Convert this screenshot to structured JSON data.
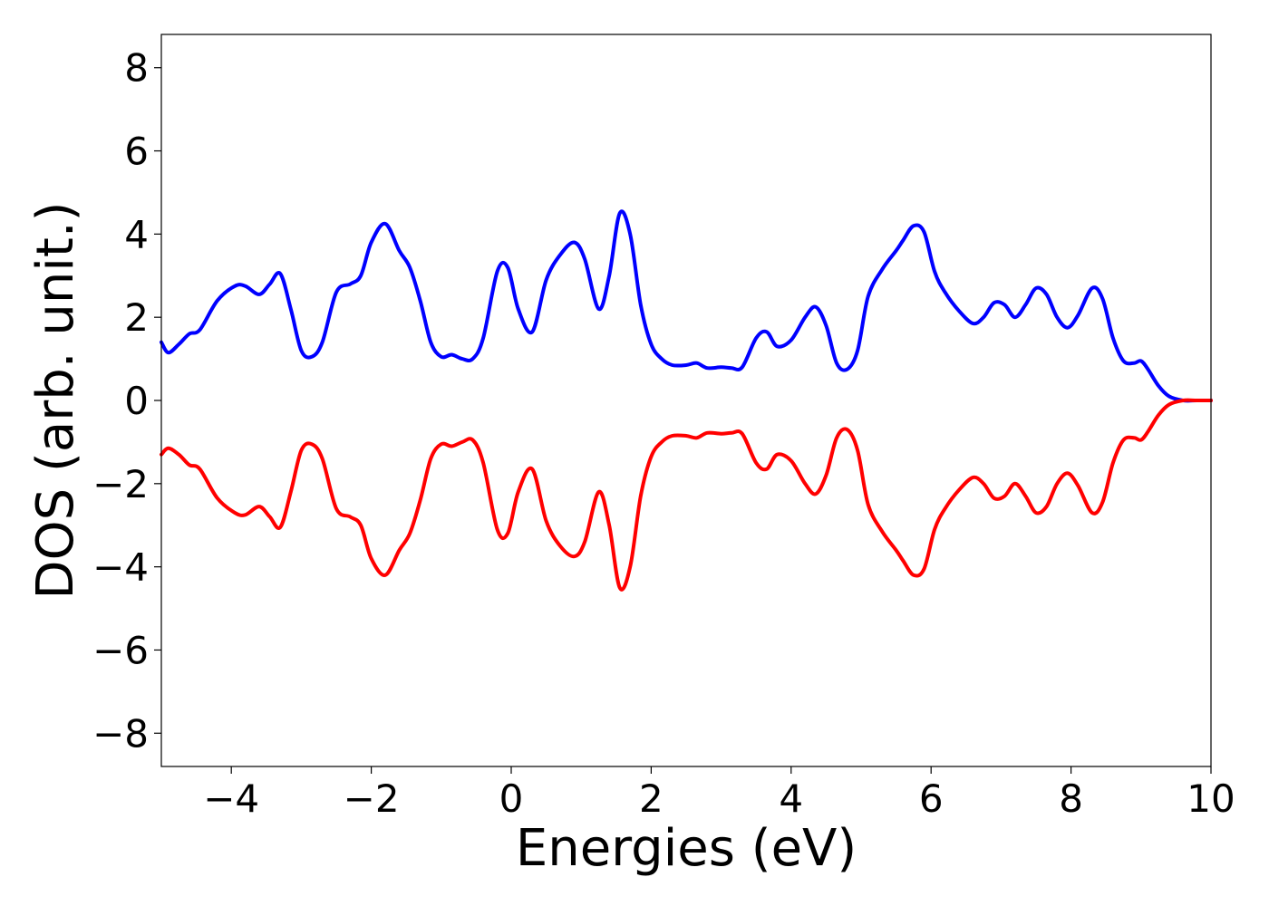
{
  "chart_data": {
    "type": "line",
    "title": "",
    "xlabel": "Energies (eV)",
    "ylabel": "DOS (arb. unit.)",
    "xlim": [
      -5,
      10
    ],
    "ylim": [
      -8.8,
      8.8
    ],
    "xticks": [
      -4,
      -2,
      0,
      2,
      4,
      6,
      8,
      10
    ],
    "yticks": [
      8,
      6,
      4,
      2,
      0,
      -2,
      -4,
      -6,
      -8
    ],
    "xtick_labels": [
      "−4",
      "−2",
      "0",
      "2",
      "4",
      "6",
      "8",
      "10"
    ],
    "ytick_labels": [
      "8",
      "6",
      "4",
      "2",
      "0",
      "−2",
      "−4",
      "−6",
      "−8"
    ],
    "grid": false,
    "legend": "none",
    "colors": {
      "spin_up": "#0000ff",
      "spin_down": "#ff0000",
      "frame": "#000000"
    },
    "x": [
      -5.0,
      -4.9,
      -4.75,
      -4.6,
      -4.45,
      -4.2,
      -3.95,
      -3.8,
      -3.6,
      -3.45,
      -3.3,
      -3.15,
      -3.0,
      -2.85,
      -2.7,
      -2.5,
      -2.3,
      -2.15,
      -2.0,
      -1.8,
      -1.6,
      -1.45,
      -1.3,
      -1.15,
      -1.0,
      -0.85,
      -0.7,
      -0.55,
      -0.4,
      -0.2,
      -0.05,
      0.1,
      0.3,
      0.5,
      0.7,
      0.9,
      1.05,
      1.25,
      1.4,
      1.55,
      1.7,
      1.85,
      2.0,
      2.15,
      2.3,
      2.5,
      2.65,
      2.8,
      3.0,
      3.15,
      3.3,
      3.5,
      3.65,
      3.8,
      4.0,
      4.2,
      4.35,
      4.5,
      4.65,
      4.8,
      4.95,
      5.1,
      5.3,
      5.5,
      5.6,
      5.75,
      5.9,
      6.05,
      6.2,
      6.4,
      6.6,
      6.75,
      6.9,
      7.05,
      7.2,
      7.35,
      7.5,
      7.65,
      7.8,
      7.95,
      8.1,
      8.3,
      8.45,
      8.6,
      8.75,
      8.9,
      9.0,
      9.1,
      9.25,
      9.4,
      9.6,
      9.8,
      10.0
    ],
    "series": [
      {
        "values": [
          1.4,
          1.15,
          1.35,
          1.6,
          1.7,
          2.4,
          2.75,
          2.75,
          2.55,
          2.8,
          3.05,
          2.2,
          1.2,
          1.05,
          1.4,
          2.6,
          2.8,
          3.0,
          3.8,
          4.25,
          3.6,
          3.2,
          2.4,
          1.4,
          1.05,
          1.1,
          1.0,
          1.0,
          1.5,
          3.1,
          3.2,
          2.2,
          1.65,
          2.9,
          3.5,
          3.8,
          3.4,
          2.2,
          3.0,
          4.5,
          4.0,
          2.3,
          1.35,
          1.0,
          0.85,
          0.85,
          0.9,
          0.78,
          0.8,
          0.78,
          0.8,
          1.5,
          1.65,
          1.3,
          1.45,
          2.0,
          2.25,
          1.8,
          0.9,
          0.75,
          1.2,
          2.5,
          3.15,
          3.6,
          3.85,
          4.2,
          4.05,
          3.1,
          2.6,
          2.15,
          1.85,
          2.0,
          2.35,
          2.3,
          2.0,
          2.3,
          2.7,
          2.55,
          2.0,
          1.75,
          2.05,
          2.7,
          2.45,
          1.5,
          0.95,
          0.9,
          0.95,
          0.75,
          0.35,
          0.1,
          0.0,
          0.0,
          0.0
        ]
      },
      {
        "values": [
          -1.3,
          -1.15,
          -1.3,
          -1.55,
          -1.65,
          -2.35,
          -2.7,
          -2.75,
          -2.55,
          -2.8,
          -3.05,
          -2.2,
          -1.2,
          -1.05,
          -1.4,
          -2.6,
          -2.8,
          -3.0,
          -3.8,
          -4.2,
          -3.6,
          -3.2,
          -2.4,
          -1.4,
          -1.05,
          -1.1,
          -1.0,
          -0.95,
          -1.5,
          -3.1,
          -3.2,
          -2.2,
          -1.65,
          -2.9,
          -3.5,
          -3.75,
          -3.4,
          -2.2,
          -3.0,
          -4.5,
          -4.0,
          -2.3,
          -1.35,
          -1.0,
          -0.85,
          -0.85,
          -0.9,
          -0.78,
          -0.8,
          -0.78,
          -0.8,
          -1.5,
          -1.65,
          -1.3,
          -1.45,
          -2.0,
          -2.25,
          -1.8,
          -0.9,
          -0.7,
          -1.2,
          -2.5,
          -3.15,
          -3.6,
          -3.85,
          -4.2,
          -4.05,
          -3.1,
          -2.6,
          -2.15,
          -1.85,
          -2.0,
          -2.35,
          -2.3,
          -2.0,
          -2.3,
          -2.7,
          -2.55,
          -2.0,
          -1.75,
          -2.05,
          -2.7,
          -2.45,
          -1.5,
          -0.95,
          -0.9,
          -0.95,
          -0.75,
          -0.35,
          -0.1,
          0.0,
          0.0,
          0.0
        ]
      }
    ]
  }
}
